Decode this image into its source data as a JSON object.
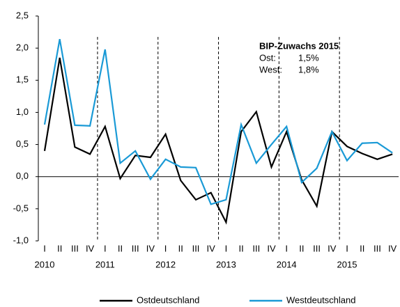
{
  "chart_data": {
    "type": "line",
    "categories": [
      "I",
      "II",
      "III",
      "IV",
      "I",
      "II",
      "III",
      "IV",
      "I",
      "II",
      "III",
      "IV",
      "I",
      "II",
      "III",
      "IV",
      "I",
      "II",
      "III",
      "IV",
      "I",
      "II",
      "III",
      "IV"
    ],
    "years": [
      "2010",
      "2011",
      "2012",
      "2013",
      "2014",
      "2015"
    ],
    "series": [
      {
        "name": "Ostdeutschland",
        "color": "#000000",
        "values": [
          0.4,
          1.85,
          0.46,
          0.35,
          0.78,
          -0.03,
          0.33,
          0.3,
          0.66,
          -0.06,
          -0.36,
          -0.25,
          -0.71,
          0.7,
          1.01,
          0.15,
          0.7,
          -0.05,
          -0.46,
          0.7,
          0.47,
          0.36,
          0.27,
          0.35
        ]
      },
      {
        "name": "Westdeutschland",
        "color": "#1a9ad6",
        "values": [
          0.81,
          2.14,
          0.8,
          0.79,
          1.98,
          0.21,
          0.4,
          -0.04,
          0.27,
          0.15,
          0.14,
          -0.43,
          -0.36,
          0.81,
          0.21,
          0.5,
          0.78,
          -0.09,
          0.13,
          0.7,
          0.25,
          0.52,
          0.53,
          0.37
        ]
      }
    ],
    "ylim": [
      -1.0,
      2.5
    ],
    "yticks": [
      {
        "value": -1.0,
        "label": "-1,0"
      },
      {
        "value": -0.5,
        "label": "-0,5"
      },
      {
        "value": 0.0,
        "label": "0,0"
      },
      {
        "value": 0.5,
        "label": "0,5"
      },
      {
        "value": 1.0,
        "label": "1,0"
      },
      {
        "value": 1.5,
        "label": "1,5"
      },
      {
        "value": 2.0,
        "label": "2,0"
      },
      {
        "value": 2.5,
        "label": "2,5"
      }
    ],
    "annotation": {
      "title": "BIP-Zuwachs 2015",
      "rows": [
        [
          "Ost:",
          "1,5%"
        ],
        [
          "West:",
          "1,8%"
        ]
      ]
    },
    "legend": "bottom"
  }
}
